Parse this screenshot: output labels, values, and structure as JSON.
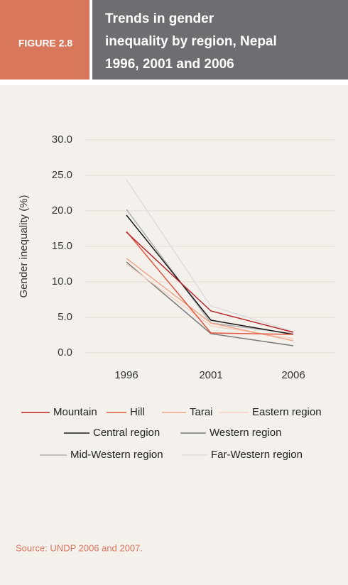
{
  "figure_label": "FIGURE 2.8",
  "chart_data": {
    "type": "line",
    "title": [
      "Trends in gender",
      "inequality by region, Nepal",
      "1996, 2001 and 2006"
    ],
    "y_label": "Gender inequality (%)",
    "categories": [
      "1996",
      "2001",
      "2006"
    ],
    "ylim": [
      0,
      30
    ],
    "yticks": [
      {
        "value": 0,
        "label": "0.0"
      },
      {
        "value": 5,
        "label": "5.0"
      },
      {
        "value": 10,
        "label": "10.0"
      },
      {
        "value": 15,
        "label": "15.0"
      },
      {
        "value": 20,
        "label": "20.0"
      },
      {
        "value": 25,
        "label": "25.0"
      },
      {
        "value": 30,
        "label": "30.0"
      }
    ],
    "grid": true,
    "series": [
      {
        "name": "Mountain",
        "color": "#b8232b",
        "values": [
          17.0,
          5.9,
          2.9
        ]
      },
      {
        "name": "Hill",
        "color": "#e0573f",
        "values": [
          17.1,
          2.8,
          2.6
        ]
      },
      {
        "name": "Tarai",
        "color": "#eea68c",
        "values": [
          13.3,
          4.2,
          1.7
        ]
      },
      {
        "name": "Eastern region",
        "color": "#f5d2c6",
        "values": [
          12.5,
          3.8,
          2.0
        ]
      },
      {
        "name": "Central region",
        "color": "#1a1a1a",
        "values": [
          19.4,
          4.6,
          2.6
        ]
      },
      {
        "name": "Western region",
        "color": "#7a7a7a",
        "values": [
          12.8,
          2.7,
          1.0
        ]
      },
      {
        "name": "Mid-Western region",
        "color": "#b0b0b0",
        "values": [
          20.2,
          4.2,
          2.7
        ]
      },
      {
        "name": "Far-Western region",
        "color": "#dcdcdc",
        "values": [
          24.4,
          6.6,
          3.0
        ]
      }
    ]
  },
  "source": "Source: UNDP 2006 and 2007."
}
